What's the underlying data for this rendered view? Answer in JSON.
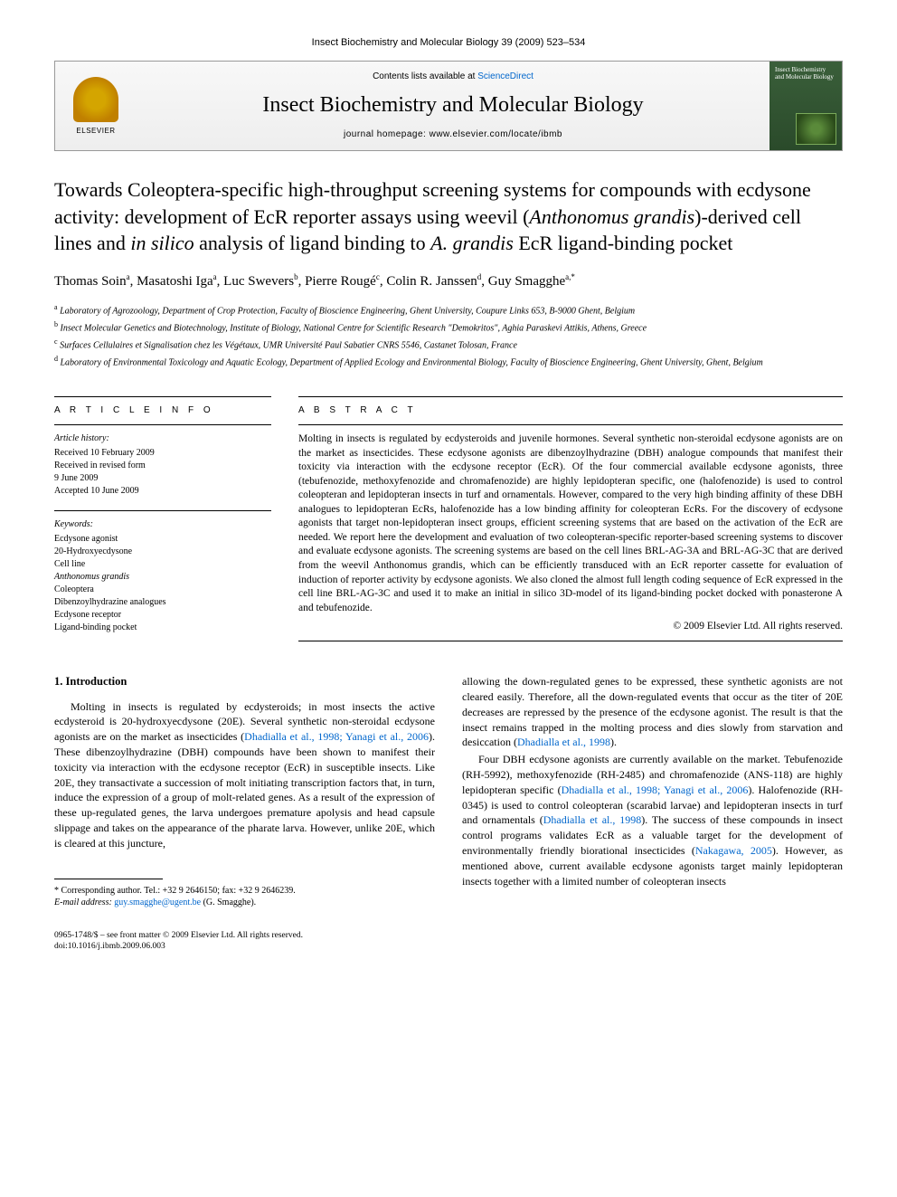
{
  "journal_ref": "Insect Biochemistry and Molecular Biology 39 (2009) 523–534",
  "header": {
    "contents_prefix": "Contents lists available at ",
    "contents_link": "ScienceDirect",
    "journal_name": "Insect Biochemistry and Molecular Biology",
    "homepage_prefix": "journal homepage: ",
    "homepage_url": "www.elsevier.com/locate/ibmb",
    "elsevier_label": "ELSEVIER",
    "cover_title": "Insect Biochemistry and Molecular Biology"
  },
  "title_parts": {
    "p1": "Towards Coleoptera-specific high-throughput screening systems for compounds with ecdysone activity: development of EcR reporter assays using weevil (",
    "p2_italic": "Anthonomus grandis",
    "p3": ")-derived cell lines and ",
    "p4_italic": "in silico",
    "p5": " analysis of ligand binding to ",
    "p6_italic": "A. grandis",
    "p7": " EcR ligand-binding pocket"
  },
  "authors": [
    {
      "name": "Thomas Soin",
      "sup": "a"
    },
    {
      "name": "Masatoshi Iga",
      "sup": "a"
    },
    {
      "name": "Luc Swevers",
      "sup": "b"
    },
    {
      "name": "Pierre Rougé",
      "sup": "c"
    },
    {
      "name": "Colin R. Janssen",
      "sup": "d"
    },
    {
      "name": "Guy Smagghe",
      "sup": "a,*"
    }
  ],
  "affiliations": [
    {
      "sup": "a",
      "text": "Laboratory of Agrozoology, Department of Crop Protection, Faculty of Bioscience Engineering, Ghent University, Coupure Links 653, B-9000 Ghent, Belgium"
    },
    {
      "sup": "b",
      "text": "Insect Molecular Genetics and Biotechnology, Institute of Biology, National Centre for Scientific Research \"Demokritos\", Aghia Paraskevi Attikis, Athens, Greece"
    },
    {
      "sup": "c",
      "text": "Surfaces Cellulaires et Signalisation chez les Végétaux, UMR Université Paul Sabatier CNRS 5546, Castanet Tolosan, France"
    },
    {
      "sup": "d",
      "text": "Laboratory of Environmental Toxicology and Aquatic Ecology, Department of Applied Ecology and Environmental Biology, Faculty of Bioscience Engineering, Ghent University, Ghent, Belgium"
    }
  ],
  "article_info": {
    "heading": "A R T I C L E   I N F O",
    "history_label": "Article history:",
    "history": [
      "Received 10 February 2009",
      "Received in revised form",
      "9 June 2009",
      "Accepted 10 June 2009"
    ],
    "keywords_label": "Keywords:",
    "keywords": [
      "Ecdysone agonist",
      "20-Hydroxyecdysone",
      "Cell line",
      "Anthonomus grandis",
      "Coleoptera",
      "Dibenzoylhydrazine analogues",
      "Ecdysone receptor",
      "Ligand-binding pocket"
    ]
  },
  "abstract": {
    "heading": "A B S T R A C T",
    "text": "Molting in insects is regulated by ecdysteroids and juvenile hormones. Several synthetic non-steroidal ecdysone agonists are on the market as insecticides. These ecdysone agonists are dibenzoylhydrazine (DBH) analogue compounds that manifest their toxicity via interaction with the ecdysone receptor (EcR). Of the four commercial available ecdysone agonists, three (tebufenozide, methoxyfenozide and chromafenozide) are highly lepidopteran specific, one (halofenozide) is used to control coleopteran and lepidopteran insects in turf and ornamentals. However, compared to the very high binding affinity of these DBH analogues to lepidopteran EcRs, halofenozide has a low binding affinity for coleopteran EcRs. For the discovery of ecdysone agonists that target non-lepidopteran insect groups, efficient screening systems that are based on the activation of the EcR are needed. We report here the development and evaluation of two coleopteran-specific reporter-based screening systems to discover and evaluate ecdysone agonists. The screening systems are based on the cell lines BRL-AG-3A and BRL-AG-3C that are derived from the weevil Anthonomus grandis, which can be efficiently transduced with an EcR reporter cassette for evaluation of induction of reporter activity by ecdysone agonists. We also cloned the almost full length coding sequence of EcR expressed in the cell line BRL-AG-3C and used it to make an initial in silico 3D-model of its ligand-binding pocket docked with ponasterone A and tebufenozide.",
    "copyright": "© 2009 Elsevier Ltd. All rights reserved."
  },
  "body": {
    "section_heading": "1. Introduction",
    "col1_p1_a": "Molting in insects is regulated by ecdysteroids; in most insects the active ecdysteroid is 20-hydroxyecdysone (20E). Several synthetic non-steroidal ecdysone agonists are on the market as insecticides (",
    "col1_p1_ref1": "Dhadialla et al., 1998; Yanagi et al., 2006",
    "col1_p1_b": "). These dibenzoylhydrazine (DBH) compounds have been shown to manifest their toxicity via interaction with the ecdysone receptor (EcR) in susceptible insects. Like 20E, they transactivate a succession of molt initiating transcription factors that, in turn, induce the expression of a group of molt-related genes. As a result of the expression of these up-regulated genes, the larva undergoes premature apolysis and head capsule slippage and takes on the appearance of the pharate larva. However, unlike 20E, which is cleared at this juncture,",
    "col2_p1_a": "allowing the down-regulated genes to be expressed, these synthetic agonists are not cleared easily. Therefore, all the down-regulated events that occur as the titer of 20E decreases are repressed by the presence of the ecdysone agonist. The result is that the insect remains trapped in the molting process and dies slowly from starvation and desiccation (",
    "col2_p1_ref1": "Dhadialla et al., 1998",
    "col2_p1_b": ").",
    "col2_p2_a": "Four DBH ecdysone agonists are currently available on the market. Tebufenozide (RH-5992), methoxyfenozide (RH-2485) and chromafenozide (ANS-118) are highly lepidopteran specific (",
    "col2_p2_ref1": "Dhadialla et al., 1998; Yanagi et al., 2006",
    "col2_p2_b": "). Halofenozide (RH-0345) is used to control coleopteran (scarabid larvae) and lepidopteran insects in turf and ornamentals (",
    "col2_p2_ref2": "Dhadialla et al., 1998",
    "col2_p2_c": "). The success of these compounds in insect control programs validates EcR as a valuable target for the development of environmentally friendly biorational insecticides (",
    "col2_p2_ref3": "Nakagawa, 2005",
    "col2_p2_d": "). However, as mentioned above, current available ecdysone agonists target mainly lepidopteran insects together with a limited number of coleopteran insects"
  },
  "footnotes": {
    "corr_label": "* Corresponding author. Tel.: +32 9 2646150; fax: +32 9 2646239.",
    "email_label": "E-mail address:",
    "email": "guy.smagghe@ugent.be",
    "email_suffix": " (G. Smagghe)."
  },
  "footer": {
    "line1": "0965-1748/$ – see front matter © 2009 Elsevier Ltd. All rights reserved.",
    "line2": "doi:10.1016/j.ibmb.2009.06.003"
  },
  "colors": {
    "link": "#0066cc",
    "text": "#000000",
    "background": "#ffffff",
    "border": "#999999"
  }
}
